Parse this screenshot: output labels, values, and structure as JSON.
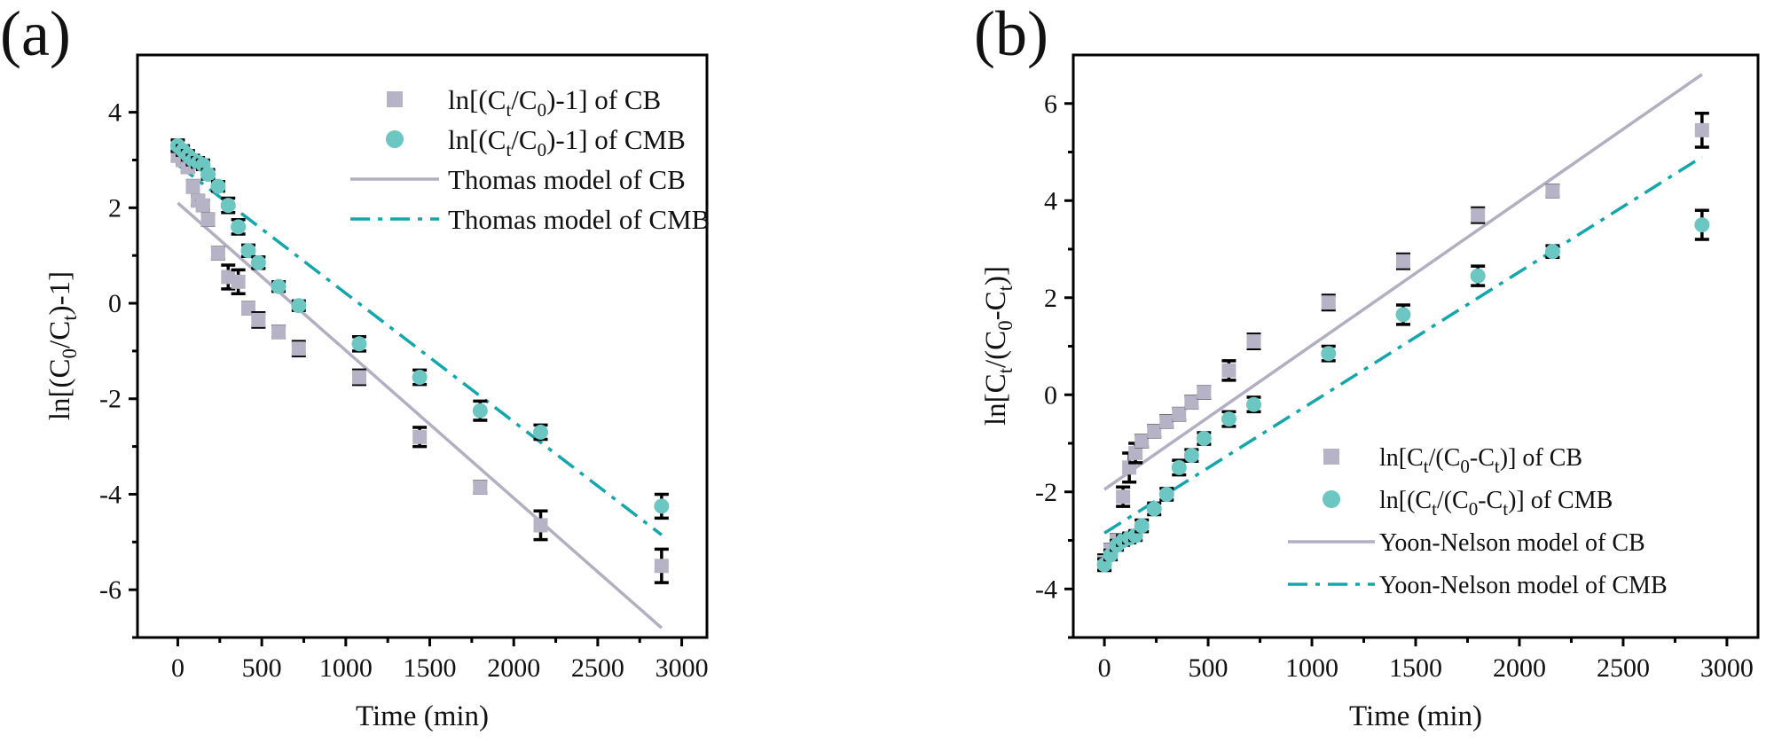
{
  "colors": {
    "cb": "#b7b3c6",
    "cmb": "#6cc6c2",
    "cmb_line": "#13a7ad",
    "cb_line": "#b3aec1"
  },
  "chart_data": [
    {
      "type": "scatter",
      "panel_label": "(a)",
      "xlabel": "Time (min)",
      "ylabel": "ln[(C0/Ct)-1]",
      "ylabel_parts": {
        "pre": "ln[(C",
        "s1": "0",
        "mid": "/C",
        "s2": "t",
        "post": ")-1]"
      },
      "xlim": [
        -240,
        3150
      ],
      "ylim": [
        -7,
        5.2
      ],
      "xticks": [
        0,
        500,
        1000,
        1500,
        2000,
        2500,
        3000
      ],
      "yticks": [
        4,
        2,
        0,
        -2,
        -4,
        -6
      ],
      "ytick_labels": [
        "4",
        "2",
        "0",
        "-2",
        "-4",
        "-6"
      ],
      "legend_position": "top-right",
      "legend": [
        {
          "kind": "square",
          "series": "cb",
          "parts": {
            "pre": "ln[(C",
            "s1": "t",
            "mid": "/C",
            "s2": "0",
            "post": ")-1] of CB"
          }
        },
        {
          "kind": "circle",
          "series": "cmb",
          "parts": {
            "pre": "ln[(C",
            "s1": "t",
            "mid": "/C",
            "s2": "0",
            "post": ")-1] of CMB"
          }
        },
        {
          "kind": "solid",
          "series": "cb",
          "parts": {
            "pre": "Thomas model of CB"
          }
        },
        {
          "kind": "dashdot",
          "series": "cmb",
          "parts": {
            "pre": "Thomas model of CMB"
          }
        }
      ],
      "series": [
        {
          "name": "CB",
          "marker": "square",
          "x": [
            0,
            30,
            60,
            90,
            120,
            150,
            180,
            240,
            300,
            360,
            420,
            480,
            600,
            720,
            1080,
            1440,
            1800,
            2160,
            2880
          ],
          "y": [
            3.1,
            3.0,
            2.85,
            2.45,
            2.15,
            2.05,
            1.75,
            1.05,
            0.55,
            0.45,
            -0.1,
            -0.35,
            -0.6,
            -0.95,
            -1.55,
            -2.8,
            -3.85,
            -4.65,
            -5.5
          ],
          "err": [
            0.12,
            0.1,
            0.1,
            0.12,
            0.1,
            0.1,
            0.12,
            0.12,
            0.25,
            0.25,
            0.12,
            0.15,
            0.12,
            0.15,
            0.15,
            0.2,
            0.12,
            0.3,
            0.35
          ]
        },
        {
          "name": "CMB",
          "marker": "circle",
          "x": [
            0,
            30,
            60,
            90,
            120,
            150,
            180,
            240,
            300,
            360,
            420,
            480,
            600,
            720,
            1080,
            1440,
            1800,
            2160,
            2880
          ],
          "y": [
            3.3,
            3.2,
            3.1,
            3.0,
            2.95,
            2.9,
            2.7,
            2.45,
            2.05,
            1.6,
            1.1,
            0.85,
            0.35,
            -0.05,
            -0.85,
            -1.55,
            -2.25,
            -2.7,
            -4.25
          ],
          "err": [
            0.12,
            0.1,
            0.1,
            0.1,
            0.1,
            0.1,
            0.1,
            0.1,
            0.15,
            0.15,
            0.12,
            0.12,
            0.1,
            0.1,
            0.15,
            0.15,
            0.2,
            0.15,
            0.25
          ]
        },
        {
          "name": "Thomas model of CB",
          "marker": "solid",
          "x": [
            0,
            2880
          ],
          "y": [
            2.1,
            -6.8
          ]
        },
        {
          "name": "Thomas model of CMB",
          "marker": "dashdot",
          "x": [
            0,
            2880
          ],
          "y": [
            2.9,
            -4.85
          ]
        }
      ]
    },
    {
      "type": "scatter",
      "panel_label": "(b)",
      "xlabel": "Time (min)",
      "ylabel": "ln[Ct/(C0-Ct)]",
      "ylabel_parts": {
        "pre": "ln[C",
        "s1": "t",
        "mid": "/(C",
        "s2": "0",
        "mid2": "-C",
        "s3": "t",
        "post": ")]"
      },
      "xlim": [
        -150,
        3150
      ],
      "ylim": [
        -5,
        7
      ],
      "xticks": [
        0,
        500,
        1000,
        1500,
        2000,
        2500,
        3000
      ],
      "yticks": [
        6,
        4,
        2,
        0,
        -2,
        -4
      ],
      "ytick_labels": [
        "6",
        "4",
        "2",
        "0",
        "-2",
        "-4"
      ],
      "legend_position": "bottom-right",
      "legend": [
        {
          "kind": "square",
          "series": "cb",
          "parts": {
            "pre": "ln[C",
            "s1": "t",
            "mid": "/(C",
            "s2": "0",
            "mid2": "-C",
            "s3": "t",
            "post": ")] of CB"
          }
        },
        {
          "kind": "circle",
          "series": "cmb",
          "parts": {
            "pre": "ln[(C",
            "s1": "t",
            "mid": "/(C",
            "s2": "0",
            "mid2": "-C",
            "s3": "t",
            "post": ")] of CMB"
          }
        },
        {
          "kind": "solid",
          "series": "cb",
          "parts": {
            "pre": "Yoon-Nelson model of CB"
          }
        },
        {
          "kind": "dashdot",
          "series": "cmb",
          "parts": {
            "pre": "Yoon-Nelson model of CMB"
          }
        }
      ],
      "series": [
        {
          "name": "CB",
          "marker": "square",
          "x": [
            0,
            30,
            60,
            90,
            120,
            150,
            180,
            240,
            300,
            360,
            420,
            480,
            600,
            720,
            1080,
            1440,
            1800,
            2160,
            2880
          ],
          "y": [
            -3.45,
            -3.2,
            -3.0,
            -2.1,
            -1.5,
            -1.2,
            -0.95,
            -0.75,
            -0.55,
            -0.4,
            -0.15,
            0.05,
            0.5,
            1.1,
            1.9,
            2.75,
            3.7,
            4.2,
            5.45
          ],
          "err": [
            0.15,
            0.12,
            0.12,
            0.2,
            0.3,
            0.2,
            0.12,
            0.12,
            0.12,
            0.12,
            0.12,
            0.12,
            0.2,
            0.15,
            0.15,
            0.15,
            0.15,
            0.12,
            0.35
          ]
        },
        {
          "name": "CMB",
          "marker": "circle",
          "x": [
            0,
            30,
            60,
            90,
            120,
            150,
            180,
            240,
            300,
            360,
            420,
            480,
            600,
            720,
            1080,
            1440,
            1800,
            2160,
            2880
          ],
          "y": [
            -3.5,
            -3.3,
            -3.1,
            -3.0,
            -2.95,
            -2.9,
            -2.7,
            -2.35,
            -2.05,
            -1.5,
            -1.25,
            -0.9,
            -0.5,
            -0.2,
            0.85,
            1.65,
            2.45,
            2.95,
            3.5
          ],
          "err": [
            0.12,
            0.1,
            0.1,
            0.1,
            0.1,
            0.1,
            0.12,
            0.12,
            0.12,
            0.15,
            0.12,
            0.12,
            0.15,
            0.15,
            0.15,
            0.2,
            0.2,
            0.12,
            0.3
          ]
        },
        {
          "name": "Yoon-Nelson model of CB",
          "marker": "solid",
          "x": [
            0,
            2880
          ],
          "y": [
            -1.95,
            6.6
          ]
        },
        {
          "name": "Yoon-Nelson model of CMB",
          "marker": "dashdot",
          "x": [
            0,
            2880
          ],
          "y": [
            -2.85,
            4.9
          ]
        }
      ]
    }
  ]
}
